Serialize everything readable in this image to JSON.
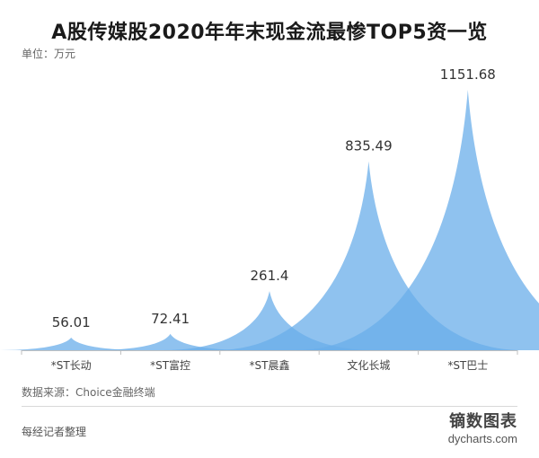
{
  "header": {
    "title": "A股传媒股2020年年末现金流最惨TOP5资一览",
    "unit": "单位：万元"
  },
  "chart_data": {
    "type": "area",
    "categories": [
      "*ST长动",
      "*ST富控",
      "*ST晨鑫",
      "文化长城",
      "*ST巴士"
    ],
    "values": [
      56.01,
      72.41,
      261.4,
      835.49,
      1151.68
    ],
    "value_labels": [
      "56.01",
      "72.41",
      "261.4",
      "835.49",
      "1151.68"
    ],
    "ylim": [
      0,
      1151.68
    ],
    "grid": false,
    "legend": "none",
    "fill_color": "#6aaeea"
  },
  "footer": {
    "source": "数据来源：Choice金融终端",
    "credit": "每经记者整理",
    "brand_name": "镝数图表",
    "brand_url": "dycharts.com"
  }
}
